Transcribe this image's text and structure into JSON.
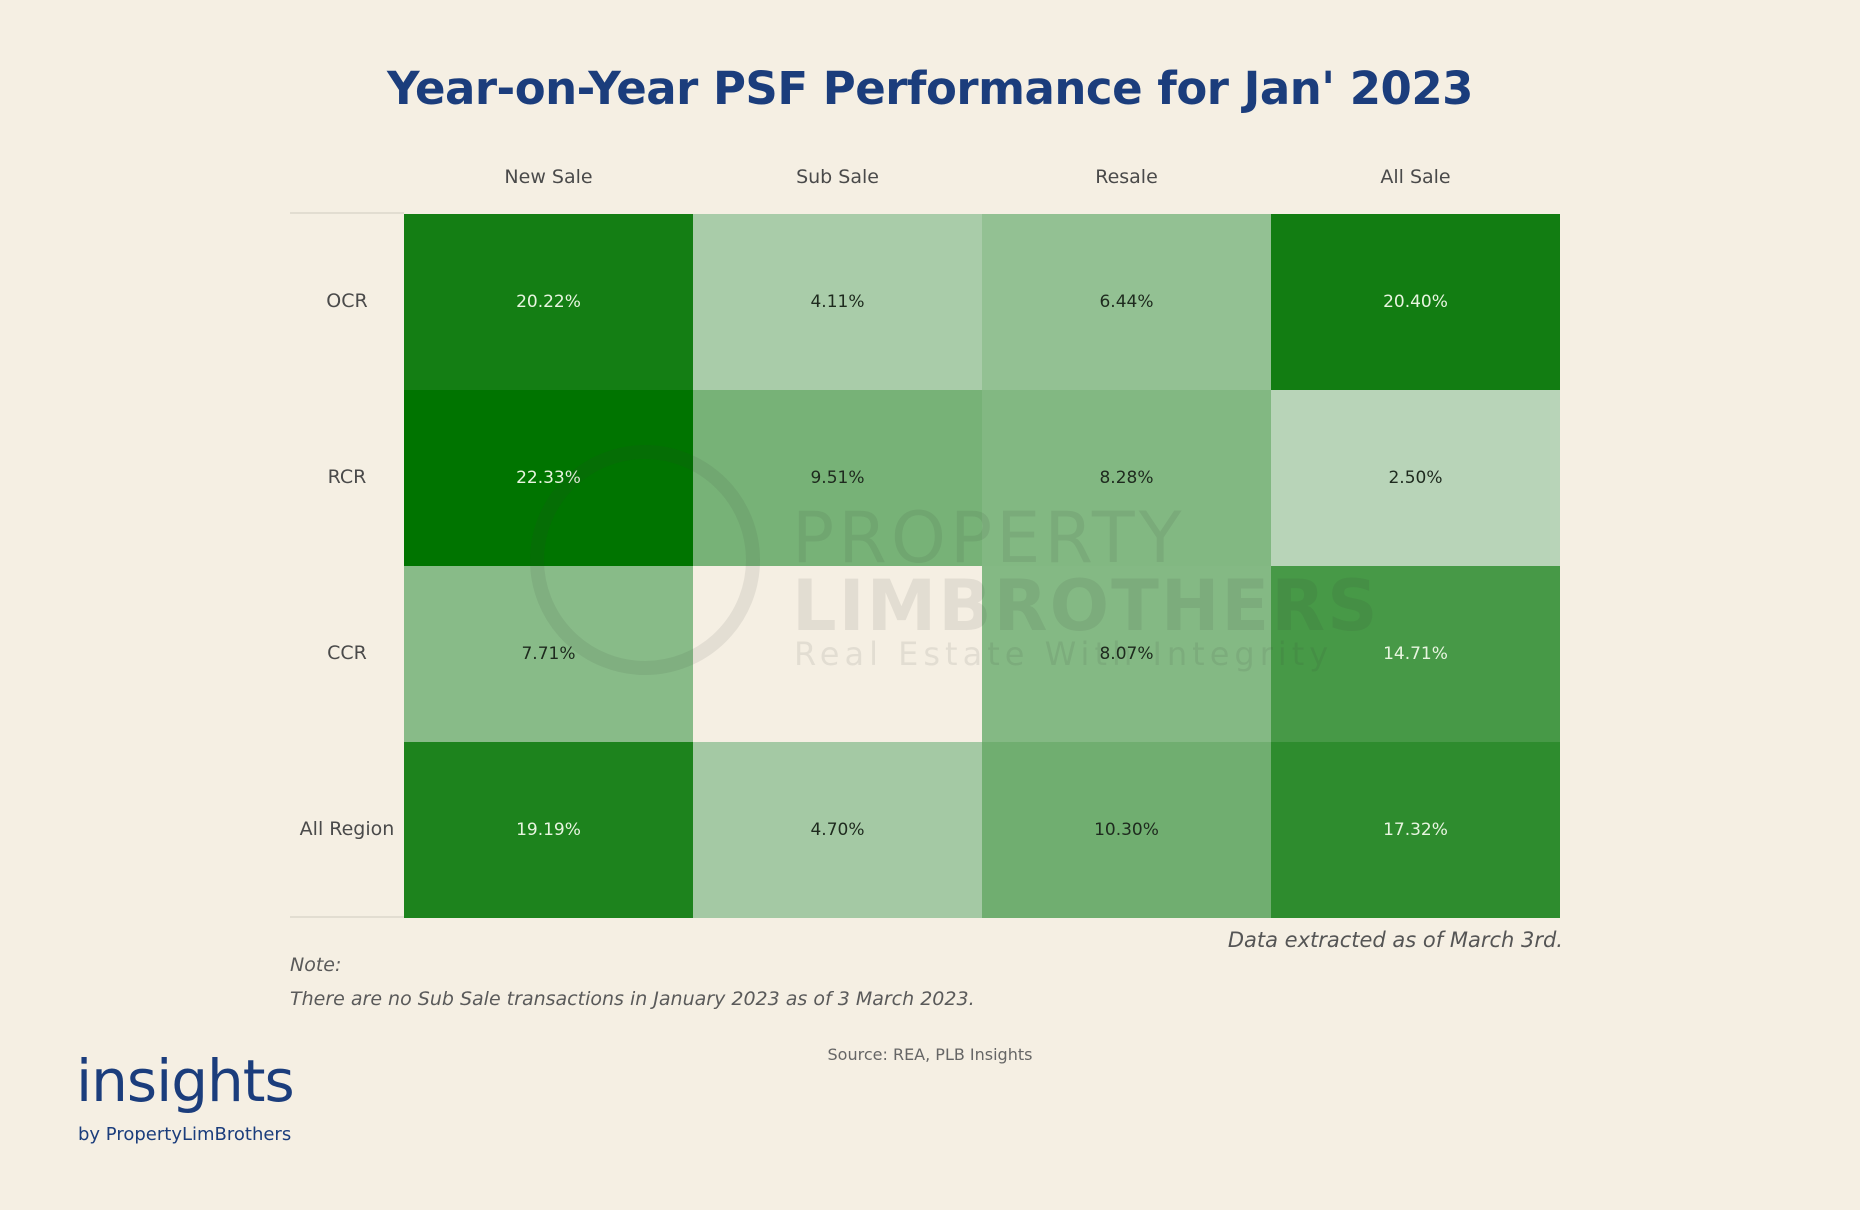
{
  "chart_data": {
    "type": "heatmap",
    "title": "Year-on-Year PSF Performance for Jan' 2023",
    "columns": [
      "New Sale",
      "Sub Sale",
      "Resale",
      "All Sale"
    ],
    "rows": [
      "OCR",
      "RCR",
      "CCR",
      "All Region"
    ],
    "values": [
      [
        20.22,
        4.11,
        6.44,
        20.4
      ],
      [
        22.33,
        9.51,
        8.28,
        2.5
      ],
      [
        7.71,
        null,
        8.07,
        14.71
      ],
      [
        19.19,
        4.7,
        10.3,
        17.32
      ]
    ],
    "labels": [
      [
        "20.22%",
        "4.11%",
        "6.44%",
        "20.40%"
      ],
      [
        "22.33%",
        "9.51%",
        "8.28%",
        "2.50%"
      ],
      [
        "7.71%",
        "",
        "8.07%",
        "14.71%"
      ],
      [
        "19.19%",
        "4.70%",
        "10.30%",
        "17.32%"
      ]
    ],
    "unit": "%",
    "color_scale": {
      "low": "#b8d4b8",
      "high": "#007400"
    },
    "value_range": [
      2.5,
      22.33
    ]
  },
  "footer": {
    "extracted": "Data extracted as of March 3rd.",
    "note_label": "Note:",
    "note_text": "There are no Sub Sale transactions in January 2023 as of 3 March 2023.",
    "source": "Source: REA, PLB Insights"
  },
  "watermark": {
    "line1": "PROPERTY",
    "line2": "LIMBROTHERS",
    "line3": "Real Estate With Integrity"
  },
  "brand": {
    "name": "insights",
    "byline": "by PropertyLimBrothers",
    "color": "#1b3d7c"
  }
}
